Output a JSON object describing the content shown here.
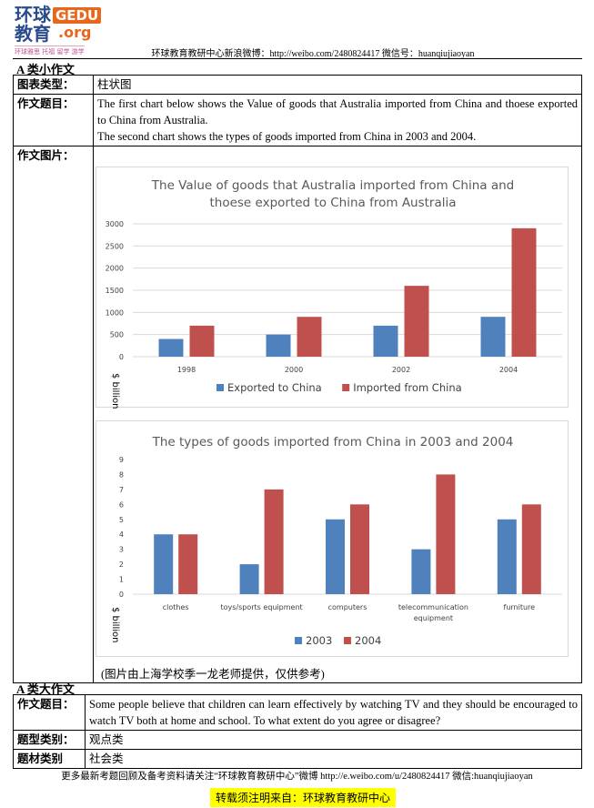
{
  "logo": {
    "cn_top": "环球",
    "cn_bottom": "教育",
    "gedu": "GEDU",
    "org": ".org",
    "tagline": "环球雅思 托福 留学 游学"
  },
  "header": {
    "text": "环球教育教研中心新浪微博：http://weibo.com/2480824417  微信号：huanqiujiaoyan"
  },
  "small_task": {
    "section_title": "A 类小作文",
    "rows": [
      {
        "label": "图表类型：",
        "value": "柱状图"
      },
      {
        "label": "作文题目：",
        "value_lines": [
          "The first chart below shows the Value of goods that Australia imported from China and thoese exported to China from Australia.",
          "The second chart shows the types of goods imported from China in 2003 and 2004."
        ]
      },
      {
        "label": "作文图片："
      }
    ],
    "caption": "(图片由上海学校季一龙老师提供，仅供参考)"
  },
  "colors": {
    "blue": "#4f81bd",
    "red": "#c0504d"
  },
  "chart_data": [
    {
      "type": "bar",
      "title": "The Value of goods that Australia imported from China and thoese exported to China from Australia",
      "title_lines": [
        "The Value of goods that Australia imported from China and",
        "thoese exported to China from Australia"
      ],
      "categories": [
        "1998",
        "2000",
        "2002",
        "2004"
      ],
      "series": [
        {
          "name": "Exported to China",
          "values": [
            400,
            500,
            700,
            900
          ]
        },
        {
          "name": "Imported from China",
          "values": [
            700,
            900,
            1600,
            2900
          ]
        }
      ],
      "ylabel": "$ billion",
      "ylim": [
        0,
        3000
      ],
      "yticks": [
        "0",
        "500",
        "1000",
        "1500",
        "2000",
        "2500",
        "3000"
      ],
      "grid": true,
      "legend": "bottom"
    },
    {
      "type": "bar",
      "title": "The types of goods imported from China in 2003 and 2004",
      "categories": [
        "clothes",
        "toys/sports equipment",
        "computers",
        "telecommunication equipment",
        "furniture"
      ],
      "category_lines": [
        [
          "clothes"
        ],
        [
          "toys/sports equipment"
        ],
        [
          "computers"
        ],
        [
          "telecommunication",
          "equipment"
        ],
        [
          "furniture"
        ]
      ],
      "series": [
        {
          "name": "2003",
          "values": [
            4,
            2,
            5,
            3,
            5
          ]
        },
        {
          "name": "2004",
          "values": [
            4,
            7,
            6,
            8,
            6
          ]
        }
      ],
      "ylabel": "$ billion",
      "ylim": [
        0,
        9
      ],
      "yticks": [
        "0",
        "1",
        "2",
        "3",
        "4",
        "5",
        "6",
        "7",
        "8",
        "9"
      ],
      "grid": false,
      "legend": "bottom"
    }
  ],
  "large_task": {
    "section_title": "A 类大作文",
    "rows": [
      {
        "label": "作文题目：",
        "value": "Some people believe that children can learn effectively by watching TV and they should be encouraged to watch TV both at home and school. To what extent do you agree or disagree?"
      },
      {
        "label": "题型类别：",
        "value": "观点类"
      },
      {
        "label": "题材类别",
        "value": "社会类"
      }
    ]
  },
  "footer": {
    "text": "更多最新考题回顾及备考资料请关注“环球教育教研中心”微博 http://e.weibo.com/u/2480824417  微信:huanqiujiaoyan",
    "notice": "转载须注明来自：环球教育教研中心"
  }
}
